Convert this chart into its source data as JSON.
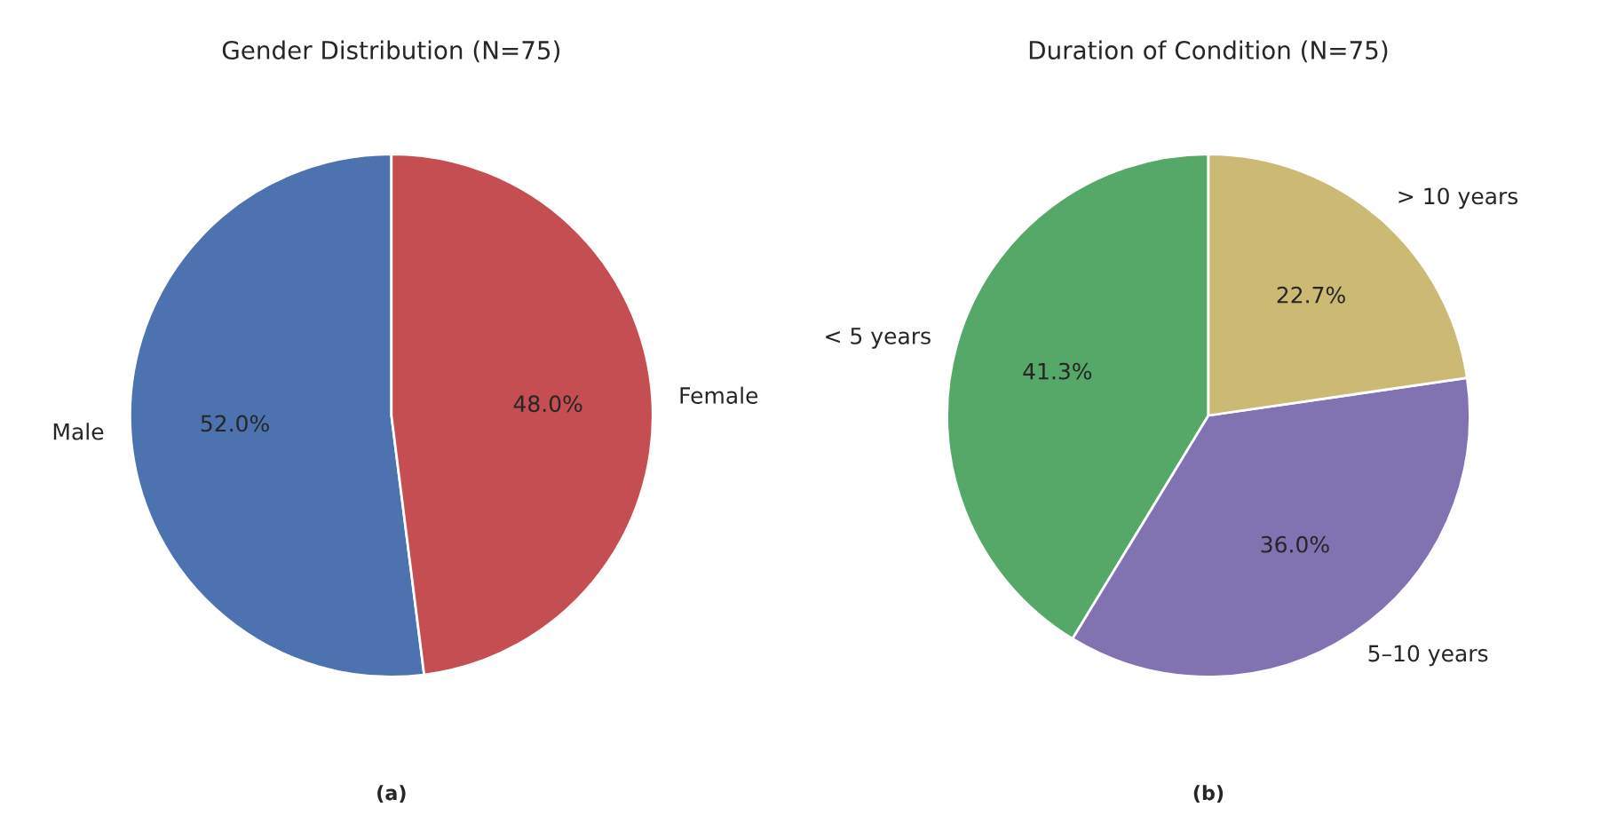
{
  "chart_data": [
    {
      "type": "pie",
      "title": "Gender Distribution (N=75)",
      "categories": [
        "Male",
        "Female"
      ],
      "values": [
        52.0,
        48.0
      ],
      "colors": [
        "#4c72b0",
        "#c44e52"
      ],
      "value_labels": [
        "52.0%",
        "48.0%"
      ],
      "annotations": [
        "(a)"
      ]
    },
    {
      "type": "pie",
      "title": "Duration of Condition (N=75)",
      "categories": [
        "< 5 years",
        "5–10 years",
        "> 10 years"
      ],
      "values": [
        41.3,
        36.0,
        22.7
      ],
      "colors": [
        "#55a868",
        "#8172b2",
        "#ccb974"
      ],
      "value_labels": [
        "41.3%",
        "36.0%",
        "22.7%"
      ],
      "annotations": [
        "(b)"
      ]
    }
  ]
}
